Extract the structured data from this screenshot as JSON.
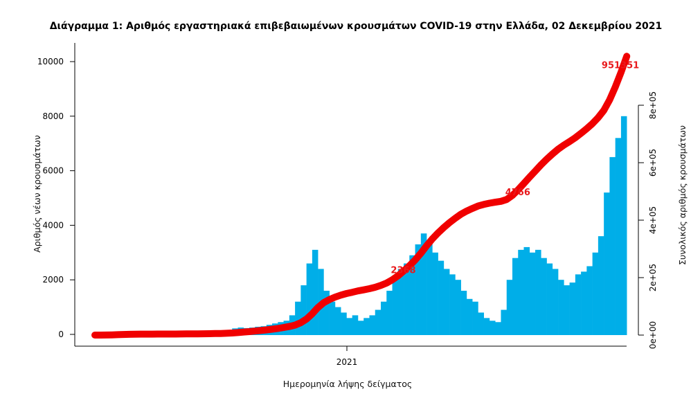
{
  "chart_data": {
    "type": "bar",
    "title": "Διάγραμμα 1: Αριθμός εργαστηριακά επιβεβαιωμένων κρουσμάτων COVID-19 στην Ελλάδα, 02 Δεκεμβρίου 2021",
    "xlabel": "Ημερομηνία λήψης δείγματος",
    "ylabel": "Αριθμός νέων κρουσμάτων",
    "y2label": "Συνολικός αριθμός κρουσμάτων",
    "x_ticks": [
      "2021"
    ],
    "y_ticks": [
      "0",
      "2000",
      "4000",
      "6000",
      "8000",
      "10000"
    ],
    "y2_ticks": [
      "0e+00",
      "2e+05",
      "4e+05",
      "6e+05",
      "8e+05"
    ],
    "ylim": [
      0,
      10500
    ],
    "y2lim": [
      0,
      1000000
    ],
    "grid": false,
    "start_date": "2020-02-26",
    "interval_days": 7,
    "colors": {
      "bars": "#00aee8",
      "cumulative_line": "#f00000",
      "labels": "#e8191c"
    },
    "series": [
      {
        "type": "bar",
        "axis": "left",
        "values": [
          10,
          30,
          80,
          90,
          100,
          80,
          60,
          20,
          15,
          10,
          10,
          10,
          5,
          10,
          20,
          20,
          30,
          25,
          30,
          40,
          50,
          60,
          80,
          150,
          220,
          250,
          230,
          250,
          280,
          300,
          350,
          400,
          450,
          500,
          700,
          1200,
          1800,
          2600,
          3100,
          2400,
          1600,
          1200,
          1000,
          800,
          600,
          700,
          500,
          600,
          700,
          900,
          1200,
          1600,
          2000,
          2400,
          2600,
          2900,
          3300,
          3700,
          3400,
          3000,
          2700,
          2400,
          2200,
          2000,
          1600,
          1300,
          1200,
          800,
          600,
          500,
          450,
          900,
          2000,
          2800,
          3100,
          3200,
          3000,
          3100,
          2800,
          2600,
          2400,
          2000,
          1800,
          1900,
          2200,
          2300,
          2500,
          3000,
          3600,
          5200,
          6500,
          7200,
          8000
        ]
      },
      {
        "type": "line",
        "axis": "right",
        "cumulative_of": "bar"
      }
    ],
    "annotations": [
      {
        "text": "2368",
        "date": "2021-03-01"
      },
      {
        "text": "4766",
        "date": "2021-07-14"
      },
      {
        "text": "951351",
        "date": "2021-12-01"
      }
    ]
  }
}
